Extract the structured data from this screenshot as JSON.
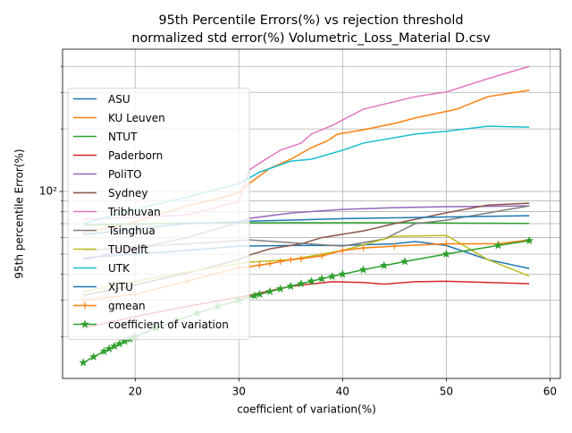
{
  "chart_data": {
    "type": "line",
    "title_lines": [
      "95th Percentile Errors(%) vs rejection threshold",
      "normalized std error(%) Volumetric_Loss_Material D.csv"
    ],
    "x_label": "coefficient of variation(%)",
    "y_label": "95th percentile Error(%)",
    "xlim": [
      13,
      61
    ],
    "xticks": [
      20,
      30,
      40,
      50,
      60
    ],
    "ylim": [
      12.6,
      484
    ],
    "yscale": "log",
    "yticks": [
      {
        "value": 100,
        "label": "10²"
      }
    ],
    "yminor_ticks": [
      20,
      30,
      40,
      50,
      60,
      70,
      80,
      90,
      200,
      300,
      400
    ],
    "grid": true,
    "legend_loc": "center left",
    "series": [
      {
        "name": "ASU",
        "color": "#1f77b4",
        "marker": "none",
        "x": [
          15,
          20,
          25,
          30,
          35,
          40,
          45,
          47,
          50,
          54,
          58
        ],
        "values": [
          48,
          50,
          52,
          54.6,
          55,
          55,
          56,
          57.4,
          55,
          47,
          42.6
        ]
      },
      {
        "name": "KU Leuven",
        "color": "#ff7f0e",
        "marker": "none",
        "x": [
          15,
          20,
          25,
          28,
          30,
          31,
          33,
          35,
          37,
          38.5,
          39.5,
          42,
          45,
          47,
          51,
          54,
          58
        ],
        "values": [
          63.4,
          71.3,
          85.3,
          92.4,
          99,
          109.3,
          129.5,
          143,
          162.6,
          175,
          188.7,
          198,
          212.6,
          225.8,
          249,
          286,
          307
        ]
      },
      {
        "name": "NTUT",
        "color": "#2ca02c",
        "marker": "none",
        "x": [
          15,
          25,
          35,
          45,
          58
        ],
        "values": [
          69,
          70.5,
          70.7,
          70.7,
          70.2
        ]
      },
      {
        "name": "Paderborn",
        "color": "#d62728",
        "marker": "none",
        "x": [
          15,
          20,
          25,
          30,
          31,
          35,
          39,
          42,
          44,
          47,
          50,
          54,
          58
        ],
        "values": [
          22,
          25,
          28,
          31,
          31.6,
          35,
          36.8,
          36.5,
          35.8,
          36.8,
          37,
          36.5,
          36
        ]
      },
      {
        "name": "PoliTO",
        "color": "#9467bd",
        "marker": "none",
        "x": [
          15,
          20,
          25,
          30,
          31,
          35,
          40,
          45,
          50,
          58
        ],
        "values": [
          47,
          53,
          60,
          71,
          74.2,
          78.8,
          82,
          83.6,
          84.5,
          85.3
        ]
      },
      {
        "name": "Sydney",
        "color": "#8c564b",
        "marker": "none",
        "x": [
          15,
          20,
          25,
          30,
          31,
          33,
          36,
          38,
          42,
          45,
          50,
          54,
          58
        ],
        "values": [
          31.6,
          35.5,
          40.5,
          47,
          49.4,
          53,
          56,
          60,
          64.6,
          70,
          79,
          86,
          87.9
        ]
      },
      {
        "name": "Tribhuvan",
        "color": "#e377c2",
        "marker": "none",
        "x": [
          15,
          20,
          25,
          30,
          31,
          32,
          34,
          36,
          37,
          39,
          42,
          47,
          50,
          54,
          58
        ],
        "values": [
          73.5,
          75,
          77,
          89.6,
          127,
          137,
          158,
          171,
          189,
          208,
          249,
          286,
          301,
          349,
          400
        ]
      },
      {
        "name": "Tsinghua",
        "color": "#7f7f7f",
        "marker": "none",
        "x": [
          15,
          20,
          25,
          30,
          31,
          40,
          44,
          47,
          50,
          58
        ],
        "values": [
          52,
          54,
          56,
          58,
          58.5,
          54.6,
          59,
          70,
          72.8,
          85.3
        ]
      },
      {
        "name": "TUDelft",
        "color": "#bcbd22",
        "marker": "none",
        "x": [
          15,
          20,
          25,
          30,
          31,
          35,
          40,
          45,
          50,
          54,
          58
        ],
        "values": [
          33,
          37,
          41,
          45,
          45.7,
          47,
          52,
          60.9,
          61.5,
          47,
          39.2
        ]
      },
      {
        "name": "UTK",
        "color": "#17becf",
        "marker": "none",
        "x": [
          15,
          20,
          25,
          30,
          32,
          35,
          37,
          40,
          42,
          47,
          50,
          54,
          58
        ],
        "values": [
          70,
          82,
          94,
          109,
          124,
          140,
          143,
          158,
          171,
          189,
          195,
          206,
          204
        ]
      },
      {
        "name": "XJTU",
        "color": "#1f77b4",
        "marker": "none",
        "x": [
          15,
          20,
          25,
          30,
          31,
          40,
          47,
          58
        ],
        "values": [
          62,
          66,
          70,
          71.5,
          72,
          74,
          75,
          76.5
        ]
      },
      {
        "name": "gmean",
        "color": "#ff7f0e",
        "marker": "plus",
        "x": [
          15,
          20,
          25,
          30,
          31,
          32,
          33,
          34,
          35,
          36,
          38,
          40,
          42,
          45,
          50,
          55,
          58
        ],
        "values": [
          30,
          32,
          37,
          43,
          43.5,
          44.2,
          45,
          46,
          47,
          47.5,
          49,
          52,
          53.5,
          54.6,
          56,
          56,
          58.5
        ]
      },
      {
        "name": "coefficient of variation",
        "color": "#2ca02c",
        "marker": "star",
        "x": [
          15,
          16,
          17,
          17.5,
          18,
          18.5,
          19,
          19.5,
          20,
          22,
          24,
          26,
          28,
          30,
          31.5,
          32,
          33,
          34,
          35,
          36,
          37,
          38,
          39,
          40,
          42,
          44,
          46,
          50,
          55,
          58
        ],
        "values": [
          15,
          16,
          17,
          17.5,
          18,
          18.5,
          19,
          19.5,
          20,
          22,
          24,
          26,
          28,
          30,
          31.5,
          32,
          33,
          34,
          35,
          36,
          37,
          38,
          39,
          40,
          42,
          44,
          46,
          50,
          55,
          58
        ]
      }
    ]
  }
}
